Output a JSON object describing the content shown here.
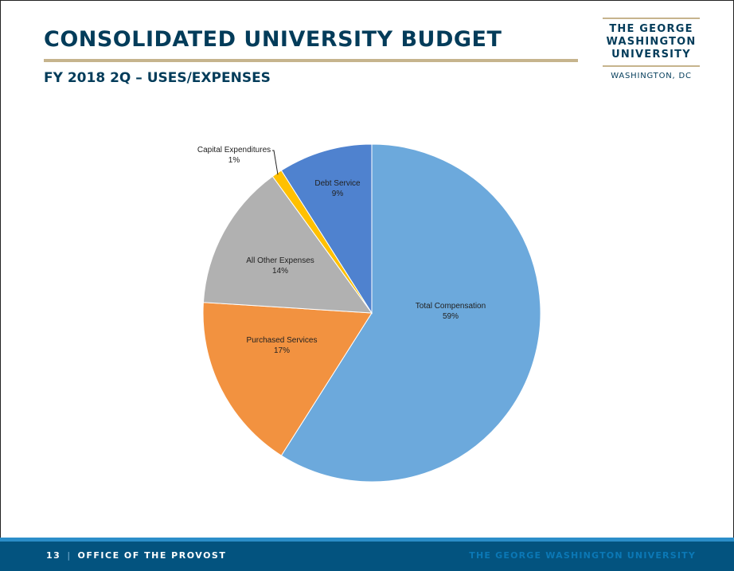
{
  "header": {
    "title": "CONSOLIDATED UNIVERSITY BUDGET",
    "subtitle": "FY 2018 2Q – USES/EXPENSES"
  },
  "logo": {
    "line1": "THE GEORGE",
    "line2": "WASHINGTON",
    "line3": "UNIVERSITY",
    "city": "WASHINGTON, DC"
  },
  "footer": {
    "page_number": "13",
    "separator": "|",
    "left_text": "OFFICE OF THE PROVOST",
    "right_text": "THE GEORGE WASHINGTON UNIVERSITY"
  },
  "colors": {
    "navy": "#033c5a",
    "buff": "#c6b48d",
    "footer_bg": "#03537f"
  },
  "chart_data": {
    "type": "pie",
    "title": "",
    "start_angle_deg": 0,
    "direction": "clockwise",
    "slices": [
      {
        "label": "Total Compensation",
        "value": 59,
        "display": "59%",
        "color": "#6ca9dc"
      },
      {
        "label": "Purchased Services",
        "value": 17,
        "display": "17%",
        "color": "#f29240"
      },
      {
        "label": "All Other Expenses",
        "value": 14,
        "display": "14%",
        "color": "#b1b1b1"
      },
      {
        "label": "Capital Expenditures",
        "value": 1,
        "display": "1%",
        "color": "#ffc000"
      },
      {
        "label": "Debt Service",
        "value": 9,
        "display": "9%",
        "color": "#4f82cf"
      }
    ]
  }
}
